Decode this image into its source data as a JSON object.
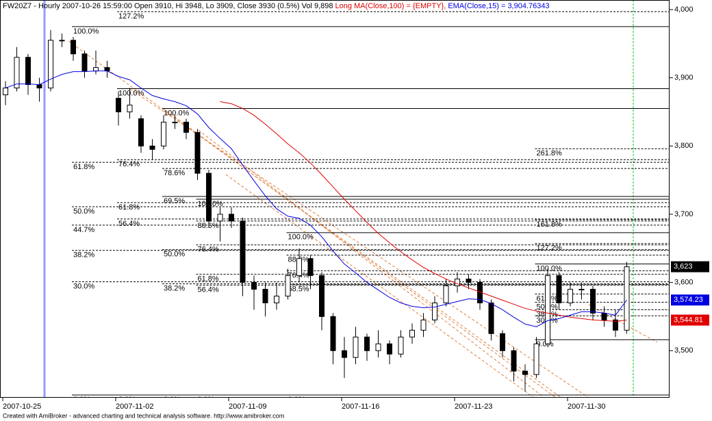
{
  "chart_data": {
    "type": "candlestick",
    "title": "FW20Z7 - Hourly 2007-10-26 15:59:00 Open 3910, Hi 3948, Lo 3909, Close 3930 (0.5%) Vol 9,898",
    "footer": "Created with AmiBroker - advanced charting and technical analysis software. http://www.amibroker.com",
    "categories": [
      "2007-10-25",
      null,
      null,
      null,
      null,
      null,
      null,
      null,
      null,
      null,
      "2007-11-02",
      null,
      null,
      null,
      null,
      null,
      null,
      null,
      null,
      null,
      "2007-11-09",
      null,
      null,
      null,
      null,
      null,
      null,
      null,
      null,
      null,
      "2007-11-16",
      null,
      null,
      null,
      null,
      null,
      null,
      null,
      null,
      null,
      "2007-11-23",
      null,
      null,
      null,
      null,
      null,
      null,
      null,
      null,
      null,
      "2007-11-30",
      null,
      null,
      null,
      null,
      null
    ],
    "candles": {
      "up_color": "#ffffff",
      "down_color": "#000000",
      "open": [
        3875,
        3885,
        3930,
        3890,
        3885,
        3955,
        3955,
        3935,
        3910,
        3915,
        3870,
        3850,
        3840,
        3800,
        3800,
        3835,
        3835,
        3820,
        3760,
        3690,
        3700,
        3690,
        3600,
        3590,
        3570,
        3580,
        3610,
        3635,
        3610,
        3550,
        3500,
        3490,
        3520,
        3500,
        3510,
        3495,
        3520,
        3530,
        3545,
        3570,
        3595,
        3605,
        3600,
        3570,
        3525,
        3500,
        3470,
        3465,
        3510,
        3610,
        3570,
        3590,
        3590,
        3555,
        3545,
        3530
      ],
      "high": [
        3895,
        3945,
        3935,
        3900,
        3970,
        3965,
        3960,
        3940,
        3940,
        3925,
        3880,
        3885,
        3845,
        3810,
        3845,
        3845,
        3840,
        3825,
        3765,
        3710,
        3710,
        3695,
        3610,
        3600,
        3600,
        3620,
        3650,
        3640,
        3615,
        3555,
        3520,
        3535,
        3525,
        3530,
        3515,
        3530,
        3540,
        3555,
        3580,
        3605,
        3615,
        3612,
        3605,
        3575,
        3530,
        3505,
        3480,
        3520,
        3620,
        3615,
        3600,
        3600,
        3595,
        3565,
        3560,
        3630
      ],
      "low": [
        3860,
        3880,
        3875,
        3865,
        3880,
        3945,
        3925,
        3900,
        3905,
        3900,
        3830,
        3840,
        3790,
        3780,
        3795,
        3825,
        3810,
        3750,
        3680,
        3660,
        3680,
        3580,
        3560,
        3550,
        3560,
        3575,
        3600,
        3590,
        3530,
        3480,
        3460,
        3480,
        3485,
        3490,
        3480,
        3490,
        3510,
        3520,
        3540,
        3565,
        3585,
        3590,
        3560,
        3515,
        3490,
        3455,
        3440,
        3460,
        3505,
        3560,
        3565,
        3575,
        3545,
        3535,
        3520,
        3525
      ],
      "close": [
        3885,
        3930,
        3890,
        3885,
        3955,
        3955,
        3935,
        3910,
        3915,
        3910,
        3850,
        3860,
        3800,
        3795,
        3835,
        3835,
        3820,
        3760,
        3690,
        3700,
        3690,
        3600,
        3590,
        3570,
        3580,
        3610,
        3635,
        3610,
        3550,
        3500,
        3490,
        3520,
        3500,
        3510,
        3495,
        3520,
        3530,
        3545,
        3570,
        3595,
        3605,
        3600,
        3570,
        3525,
        3500,
        3470,
        3465,
        3510,
        3610,
        3570,
        3590,
        3590,
        3555,
        3545,
        3530,
        3623
      ],
      "value_labels": [
        null,
        null,
        null,
        null,
        null,
        null,
        null,
        null,
        null,
        null,
        null,
        null,
        null,
        null,
        null,
        null,
        null,
        null,
        null,
        null,
        null,
        null,
        null,
        null,
        null,
        null,
        null,
        null,
        null,
        null,
        null,
        null,
        null,
        null,
        null,
        null,
        null,
        null,
        null,
        null,
        null,
        null,
        null,
        null,
        null,
        null,
        null,
        null,
        null,
        null,
        null,
        null,
        null,
        null,
        null,
        "3,623"
      ]
    },
    "series": [
      {
        "name": "Long MA(Close,100) = {EMPTY},",
        "color": "#e00000",
        "values": [
          null,
          null,
          null,
          null,
          null,
          null,
          null,
          null,
          null,
          null,
          null,
          null,
          null,
          null,
          null,
          null,
          null,
          null,
          null,
          3865,
          3862,
          3855,
          3845,
          3832,
          3818,
          3803,
          3790,
          3775,
          3758,
          3740,
          3722,
          3705,
          3688,
          3672,
          3658,
          3645,
          3633,
          3622,
          3613,
          3605,
          3598,
          3592,
          3586,
          3580,
          3574,
          3568,
          3562,
          3558,
          3555,
          3552,
          3549,
          3547,
          3545,
          3544,
          3543,
          3544.81
        ],
        "value_labels": [
          null,
          null,
          null,
          null,
          null,
          null,
          null,
          null,
          null,
          null,
          null,
          null,
          null,
          null,
          null,
          null,
          null,
          null,
          null,
          null,
          null,
          null,
          null,
          null,
          null,
          null,
          null,
          null,
          null,
          null,
          null,
          null,
          null,
          null,
          null,
          null,
          null,
          null,
          null,
          null,
          null,
          null,
          null,
          null,
          null,
          null,
          null,
          null,
          null,
          null,
          null,
          null,
          null,
          null,
          null,
          "3,544.81"
        ]
      },
      {
        "name": "EMA(Close,15) = 3,904.76343",
        "color": "#0000e0",
        "values": [
          3885,
          3891,
          3891,
          3890,
          3898,
          3905,
          3909,
          3909,
          3910,
          3910,
          3902,
          3897,
          3885,
          3874,
          3869,
          3865,
          3859,
          3847,
          3827,
          3811,
          3796,
          3772,
          3749,
          3727,
          3708,
          3697,
          3694,
          3684,
          3667,
          3646,
          3627,
          3614,
          3600,
          3589,
          3578,
          3570,
          3565,
          3563,
          3564,
          3568,
          3572,
          3576,
          3575,
          3569,
          3560,
          3549,
          3539,
          3535,
          3544,
          3547,
          3552,
          3557,
          3557,
          3555,
          3552,
          3574.23
        ],
        "value_labels": [
          null,
          null,
          null,
          null,
          null,
          null,
          null,
          null,
          null,
          null,
          null,
          null,
          null,
          null,
          null,
          null,
          null,
          null,
          null,
          null,
          null,
          null,
          null,
          null,
          null,
          null,
          null,
          null,
          null,
          null,
          null,
          null,
          null,
          null,
          null,
          null,
          null,
          null,
          null,
          null,
          null,
          null,
          null,
          null,
          null,
          null,
          null,
          null,
          null,
          null,
          null,
          null,
          null,
          null,
          null,
          "3,574.23"
        ]
      }
    ],
    "ylim": [
      3432,
      4014
    ],
    "yticks": [
      {
        "value": 3500,
        "label": "3,500"
      },
      {
        "value": 3600,
        "label": "3,600"
      },
      {
        "value": 3700,
        "label": "3,700"
      },
      {
        "value": 3800,
        "label": "3,800"
      },
      {
        "value": 3900,
        "label": "3,900"
      },
      {
        "value": 4000,
        "label": "4,000"
      }
    ],
    "fib": [
      {
        "label": "127.2%",
        "value": 3997,
        "start": 10,
        "style": "dotted"
      },
      {
        "label": "100.0%",
        "value": 3975,
        "start": 6,
        "style": "solid"
      },
      {
        "label": "100.0%",
        "value": 3884,
        "start": 10,
        "style": "solid"
      },
      {
        "label": "100.0%",
        "value": 3855,
        "start": 14,
        "style": "solid"
      },
      {
        "label": "261.8%",
        "value": 3796,
        "start": 47,
        "style": "dotted"
      },
      {
        "label": "61.8%",
        "value": 3776,
        "start": 6,
        "style": "dotted"
      },
      {
        "label": "76.4%",
        "value": 3780,
        "start": 10,
        "style": "dotted"
      },
      {
        "label": "78.6%",
        "value": 3767,
        "start": 14,
        "style": "dotted"
      },
      {
        "label": "69.5%",
        "value": 3726,
        "start": 14,
        "style": "solid"
      },
      {
        "label": "50.0%",
        "value": 3711,
        "start": 6,
        "style": "dotted"
      },
      {
        "label": "61.8%",
        "value": 3717,
        "start": 10,
        "style": "dotted"
      },
      {
        "label": "100.0%",
        "value": 3722,
        "start": 17,
        "style": "solid"
      },
      {
        "label": "44.7%",
        "value": 3684,
        "start": 6,
        "style": "dotted"
      },
      {
        "label": "56.4%",
        "value": 3693,
        "start": 10,
        "style": "dotted"
      },
      {
        "label": "88.6%",
        "value": 3690,
        "start": 17,
        "style": "dotted"
      },
      {
        "label": "161.8%",
        "value": 3692,
        "start": 47,
        "style": "dotted"
      },
      {
        "label": "100.0%",
        "value": 3673,
        "start": 25,
        "style": "solid"
      },
      {
        "label": "38.2%",
        "value": 3647,
        "start": 6,
        "style": "dotted"
      },
      {
        "label": "50.0%",
        "value": 3648,
        "start": 14,
        "style": "dotted"
      },
      {
        "label": "76.4%",
        "value": 3655,
        "start": 17,
        "style": "dotted"
      },
      {
        "label": "127.2%",
        "value": 3657,
        "start": 47,
        "style": "dotted"
      },
      {
        "label": "88.6%",
        "value": 3640,
        "start": 25,
        "style": "dotted"
      },
      {
        "label": "100.0%",
        "value": 3627,
        "start": 47,
        "style": "solid"
      },
      {
        "label": "76.4%",
        "value": 3617,
        "start": 25,
        "style": "dotted"
      },
      {
        "label": "61.8%",
        "value": 3612,
        "start": 17,
        "style": "dotted"
      },
      {
        "label": "30.0%",
        "value": 3601,
        "start": 6,
        "style": "dotted"
      },
      {
        "label": "38.2%",
        "value": 3598,
        "start": 14,
        "style": "dotted"
      },
      {
        "label": "56.4%",
        "value": 3596,
        "start": 17,
        "style": "dotted"
      },
      {
        "label": "68.5%",
        "value": 3597,
        "start": 25,
        "style": "dotted"
      },
      {
        "label": "61.8%",
        "value": 3583,
        "start": 47,
        "style": "dotted"
      },
      {
        "label": "50.0%",
        "value": 3571,
        "start": 47,
        "style": "dotted"
      },
      {
        "label": "38.2%",
        "value": 3560,
        "start": 47,
        "style": "dotted"
      },
      {
        "label": "30.0%",
        "value": 3551,
        "start": 47,
        "style": "dotted"
      },
      {
        "label": "0.0%",
        "value": 3516,
        "start": 47,
        "style": "solid"
      },
      {
        "label": "0.0%",
        "value": 3435,
        "start": 6,
        "style": "solid"
      },
      {
        "label": "0.0%",
        "value": 3435,
        "start": 10,
        "style": "solid"
      },
      {
        "label": "0.0%",
        "value": 3435,
        "start": 14,
        "style": "solid"
      },
      {
        "label": "0.0%",
        "value": 3435,
        "start": 17,
        "style": "solid"
      },
      {
        "label": "0.0%",
        "value": 3435,
        "start": 25,
        "style": "solid"
      }
    ]
  }
}
